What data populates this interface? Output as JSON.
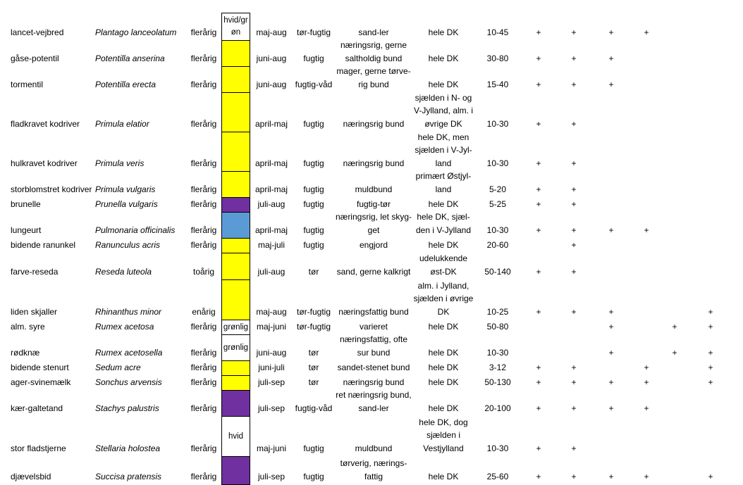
{
  "colors": {
    "yellow": "#ffff00",
    "purple": "#7030a0",
    "blue": "#5b9bd5",
    "white": "#ffffff"
  },
  "rows": [
    {
      "danish": "lancet-vejbred",
      "latin": "Plantago lanceolatum",
      "life": "flerårig",
      "color_label": "hvid/gr\nøn",
      "color": "white",
      "bloom": "maj-aug",
      "moisture": "tør-fugtig",
      "soil": "sand-ler",
      "distribution": "hele DK",
      "height": "10-45",
      "marks": [
        "+",
        "+",
        "+",
        "+",
        "",
        ""
      ]
    },
    {
      "danish": "gåse-potentil",
      "latin": "Potentilla anserina",
      "life": "flerårig",
      "color_label": "",
      "color": "yellow",
      "bloom": "juni-aug",
      "moisture": "fugtig",
      "soil": "næringsrig, gerne\nsaltholdig bund",
      "distribution": "hele DK",
      "height": "30-80",
      "marks": [
        "+",
        "+",
        "+",
        "",
        "",
        ""
      ]
    },
    {
      "danish": "tormentil",
      "latin": "Potentilla erecta",
      "life": "flerårig",
      "color_label": "",
      "color": "yellow",
      "bloom": "juni-aug",
      "moisture": "fugtig-våd",
      "soil": "mager, gerne tørve-\nrig bund",
      "distribution": "hele DK",
      "height": "15-40",
      "marks": [
        "+",
        "+",
        "+",
        "",
        "",
        ""
      ]
    },
    {
      "danish": "fladkravet kodriver",
      "latin": "Primula elatior",
      "life": "flerårig",
      "color_label": "",
      "color": "yellow",
      "bloom": "april-maj",
      "moisture": "fugtig",
      "soil": "næringsrig bund",
      "distribution": "sjælden i N- og\nV-Jylland, alm. i\nøvrige DK",
      "height": "10-30",
      "marks": [
        "+",
        "+",
        "",
        "",
        "",
        ""
      ]
    },
    {
      "danish": "hulkravet kodriver",
      "latin": "Primula veris",
      "life": "flerårig",
      "color_label": "",
      "color": "yellow",
      "bloom": "april-maj",
      "moisture": "fugtig",
      "soil": "næringsrig bund",
      "distribution": "hele DK, men\nsjælden i V-Jyl-\nland",
      "height": "10-30",
      "marks": [
        "+",
        "+",
        "",
        "",
        "",
        ""
      ]
    },
    {
      "danish": "storblomstret kodriver",
      "latin": "Primula vulgaris",
      "life": "flerårig",
      "color_label": "",
      "color": "yellow",
      "bloom": "april-maj",
      "moisture": "fugtig",
      "soil": "muldbund",
      "distribution": "primært Østjyl-\nland",
      "height": "5-20",
      "marks": [
        "+",
        "+",
        "",
        "",
        "",
        ""
      ]
    },
    {
      "danish": "brunelle",
      "latin": "Prunella vulgaris",
      "life": "flerårig",
      "color_label": "",
      "color": "purple",
      "bloom": "juli-aug",
      "moisture": "fugtig",
      "soil": "fugtig-tør",
      "distribution": "hele DK",
      "height": "5-25",
      "marks": [
        "+",
        "+",
        "",
        "",
        "",
        ""
      ]
    },
    {
      "danish": "lungeurt",
      "latin": "Pulmonaria officinalis",
      "life": "flerårig",
      "color_label": "",
      "color": "blue",
      "bloom": "april-maj",
      "moisture": "fugtig",
      "soil": "næringsrig, let skyg-\nget",
      "distribution": "hele DK, sjæl-\nden i V-Jylland",
      "height": "10-30",
      "marks": [
        "+",
        "+",
        "+",
        "+",
        "",
        ""
      ]
    },
    {
      "danish": "bidende ranunkel",
      "latin": "Ranunculus acris",
      "life": "flerårig",
      "color_label": "",
      "color": "yellow",
      "bloom": "maj-juli",
      "moisture": "fugtig",
      "soil": "engjord",
      "distribution": "hele DK",
      "height": "20-60",
      "marks": [
        "",
        "+",
        "",
        "",
        "",
        ""
      ]
    },
    {
      "danish": "farve-reseda",
      "latin": "Reseda luteola",
      "life": "toårig",
      "color_label": "",
      "color": "yellow",
      "bloom": "juli-aug",
      "moisture": "tør",
      "soil": "sand, gerne kalkrigt",
      "distribution": "udelukkende\nøst-DK",
      "height": "50-140",
      "marks": [
        "+",
        "+",
        "",
        "",
        "",
        ""
      ]
    },
    {
      "danish": "liden skjaller",
      "latin": "Rhinanthus minor",
      "life": "enårig",
      "color_label": "",
      "color": "yellow",
      "bloom": "maj-aug",
      "moisture": "tør-fugtig",
      "soil": "næringsfattig bund",
      "distribution": "alm. i Jylland,\nsjælden i øvrige\nDK",
      "height": "10-25",
      "marks": [
        "+",
        "+",
        "+",
        "",
        "",
        "+"
      ]
    },
    {
      "danish": "alm. syre",
      "latin": "Rumex acetosa",
      "life": "flerårig",
      "color_label": "grønlig",
      "color": "white",
      "bloom": "maj-juni",
      "moisture": "tør-fugtig",
      "soil": "varieret",
      "distribution": "hele DK",
      "height": "50-80",
      "marks": [
        "",
        "",
        "+",
        "",
        "+",
        "+"
      ]
    },
    {
      "danish": "rødknæ",
      "latin": "Rumex acetosella",
      "life": "flerårig",
      "color_label": "grønlig",
      "color": "white",
      "bloom": "juni-aug",
      "moisture": "tør",
      "soil": "næringsfattig, ofte\nsur bund",
      "distribution": "hele DK",
      "height": "10-30",
      "marks": [
        "",
        "",
        "+",
        "",
        "+",
        "+"
      ]
    },
    {
      "danish": "bidende stenurt",
      "latin": "Sedum acre",
      "life": "flerårig",
      "color_label": "",
      "color": "yellow",
      "bloom": "juni-juli",
      "moisture": "tør",
      "soil": "sandet-stenet bund",
      "distribution": "hele DK",
      "height": "3-12",
      "marks": [
        "+",
        "+",
        "",
        "+",
        "",
        "+"
      ]
    },
    {
      "danish": "ager-svinemælk",
      "latin": "Sonchus arvensis",
      "life": "flerårig",
      "color_label": "",
      "color": "yellow",
      "bloom": "juli-sep",
      "moisture": "tør",
      "soil": "næringsrig bund",
      "distribution": "hele DK",
      "height": "50-130",
      "marks": [
        "+",
        "+",
        "+",
        "+",
        "",
        "+"
      ]
    },
    {
      "danish": "kær-galtetand",
      "latin": "Stachys palustris",
      "life": "flerårig",
      "color_label": "",
      "color": "purple",
      "bloom": "juli-sep",
      "moisture": "fugtig-våd",
      "soil": "ret næringsrig bund,\nsand-ler",
      "distribution": "hele DK",
      "height": "20-100",
      "marks": [
        "+",
        "+",
        "+",
        "+",
        "",
        ""
      ]
    },
    {
      "danish": "stor fladstjerne",
      "latin": "Stellaria holostea",
      "life": "flerårig",
      "color_label": "hvid",
      "color": "white",
      "bloom": "maj-juni",
      "moisture": "fugtig",
      "soil": "muldbund",
      "distribution": "hele DK, dog\nsjælden i\nVestjylland",
      "height": "10-30",
      "marks": [
        "+",
        "+",
        "",
        "",
        "",
        ""
      ]
    },
    {
      "danish": "djævelsbid",
      "latin": "Succisa pratensis",
      "life": "flerårig",
      "color_label": "",
      "color": "purple",
      "bloom": "juli-sep",
      "moisture": "fugtig",
      "soil": "tørverig, nærings-\nfattig",
      "distribution": "hele DK",
      "height": "25-60",
      "marks": [
        "+",
        "+",
        "+",
        "+",
        "",
        "+"
      ]
    }
  ]
}
